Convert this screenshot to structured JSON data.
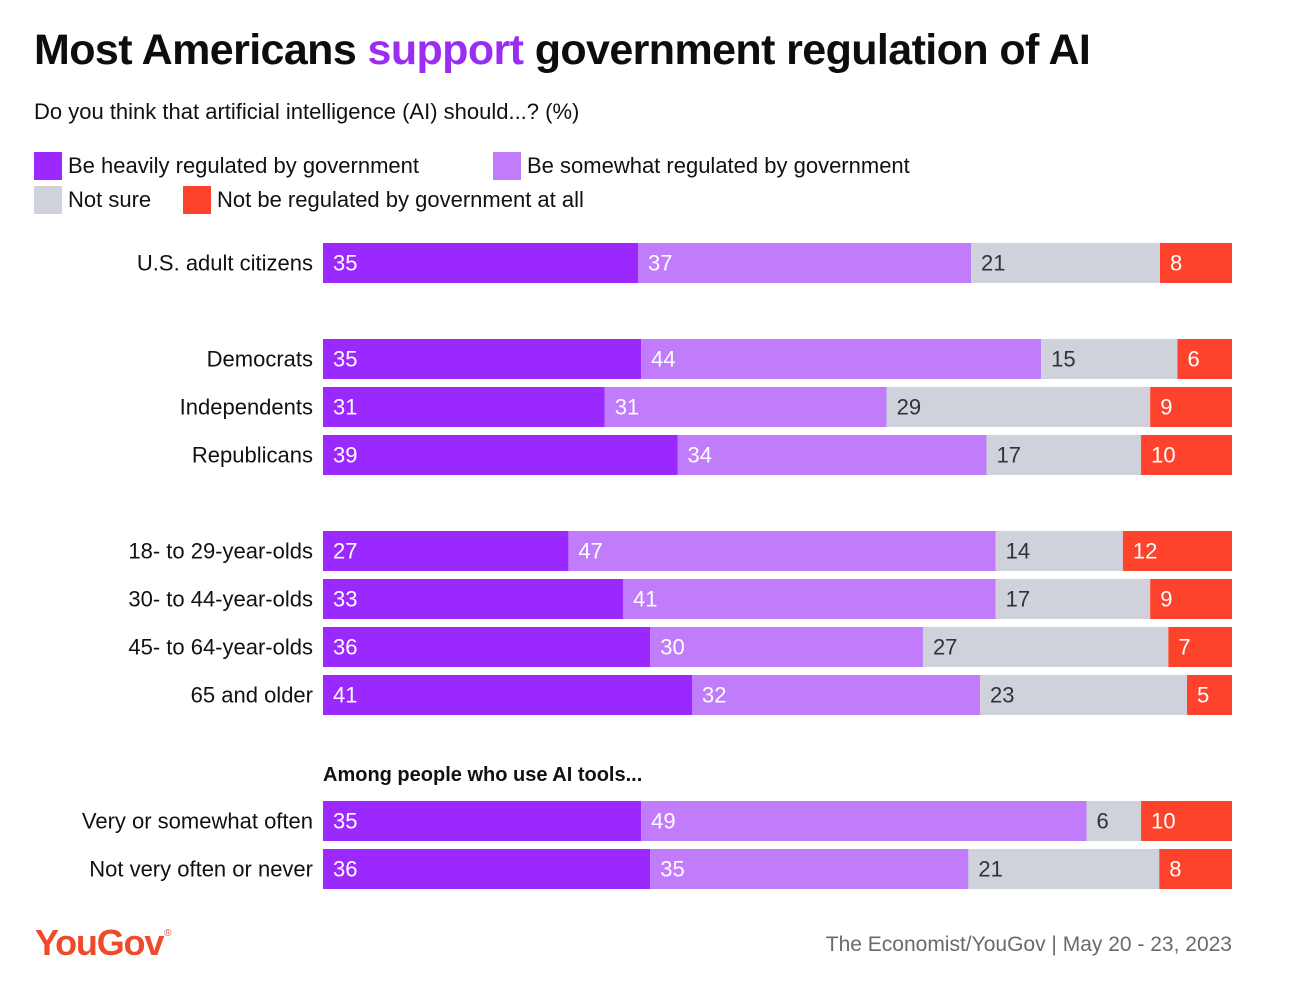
{
  "title_parts": {
    "before": "Most Americans ",
    "highlight": "support",
    "after": " government regulation of AI"
  },
  "subtitle": "Do you think that artificial intelligence (AI) should...? (%)",
  "colors": {
    "heavily": "#9b29fe",
    "somewhat": "#c07cfa",
    "not_sure": "#cfd2db",
    "not_at_all": "#fd432c",
    "title_highlight": "#9b2cf2",
    "logo": "#ee4a2c"
  },
  "legend": [
    {
      "label": "Be heavily regulated by government",
      "color": "#9b29fe"
    },
    {
      "label": "Be somewhat regulated by government",
      "color": "#c07cfa"
    },
    {
      "label": "Not sure",
      "color": "#cfd2db"
    },
    {
      "label": "Not be regulated by government at all",
      "color": "#fd432c"
    }
  ],
  "section_label": "Among people who use AI tools...",
  "chart_data": {
    "type": "bar",
    "orientation": "horizontal",
    "stacked": true,
    "normalized": true,
    "categories": [
      "U.S. adult citizens",
      "Democrats",
      "Independents",
      "Republicans",
      "18- to 29-year-olds",
      "30- to 44-year-olds",
      "45- to 64-year-olds",
      "65 and older",
      "Very or somewhat often",
      "Not very often or never"
    ],
    "series": [
      {
        "name": "Be heavily regulated by government",
        "color": "#9b29fe",
        "label_color": "#ffffff",
        "values": [
          35,
          35,
          31,
          39,
          27,
          33,
          36,
          41,
          35,
          36
        ]
      },
      {
        "name": "Be somewhat regulated by government",
        "color": "#c07cfa",
        "label_color": "#ffffff",
        "values": [
          37,
          44,
          31,
          34,
          47,
          41,
          30,
          32,
          49,
          35
        ]
      },
      {
        "name": "Not sure",
        "color": "#cfd2db",
        "label_color": "#333333",
        "values": [
          21,
          15,
          29,
          17,
          14,
          17,
          27,
          23,
          6,
          21
        ]
      },
      {
        "name": "Not be regulated by government at all",
        "color": "#fd432c",
        "label_color": "#ffffff",
        "values": [
          8,
          6,
          9,
          10,
          12,
          9,
          7,
          5,
          10,
          8
        ]
      }
    ],
    "legend_position": "top-left",
    "grid": false
  },
  "logo": {
    "text": "YouGov",
    "mark": "®"
  },
  "source": "The Economist/YouGov | May 20 - 23, 2023"
}
